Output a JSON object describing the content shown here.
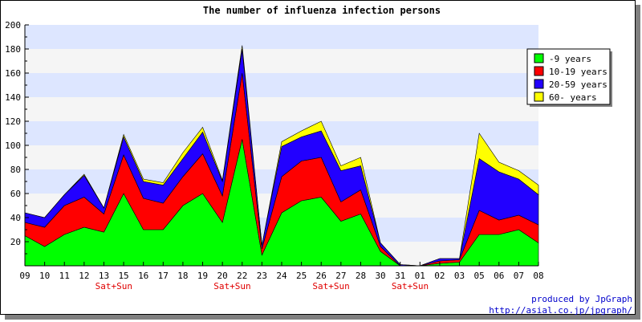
{
  "chart_data": {
    "type": "area",
    "stacked": true,
    "title": "The number of influenza infection persons",
    "categories": [
      "09",
      "10",
      "11",
      "12",
      "13",
      "15",
      "16",
      "17",
      "18",
      "19",
      "20",
      "22",
      "23",
      "24",
      "25",
      "26",
      "27",
      "28",
      "30",
      "31",
      "01",
      "02",
      "03",
      "05",
      "06",
      "07",
      "08"
    ],
    "weekend_label": "Sat+Sun",
    "weekend_after": [
      "13",
      "20",
      "26",
      "31"
    ],
    "series": [
      {
        "name": "-9 years",
        "color": "#00ff00",
        "values": [
          25,
          16,
          26,
          32,
          28,
          60,
          30,
          30,
          50,
          60,
          36,
          105,
          9,
          44,
          54,
          57,
          37,
          43,
          12,
          0,
          0,
          2,
          3,
          26,
          26,
          30,
          19
        ]
      },
      {
        "name": "10-19 years",
        "color": "#ff0000",
        "values": [
          11,
          16,
          24,
          25,
          15,
          32,
          26,
          22,
          24,
          33,
          22,
          55,
          5,
          30,
          33,
          33,
          16,
          20,
          4,
          0,
          0,
          2,
          2,
          20,
          12,
          12,
          15
        ]
      },
      {
        "name": "20-59 years",
        "color": "#2200ff",
        "values": [
          8,
          8,
          9,
          18,
          5,
          15,
          14,
          15,
          15,
          18,
          12,
          20,
          3,
          25,
          20,
          22,
          26,
          20,
          3,
          1,
          0,
          2,
          1,
          43,
          40,
          30,
          25
        ]
      },
      {
        "name": "60- years",
        "color": "#ffff00",
        "values": [
          0,
          0,
          0,
          1,
          0,
          2,
          2,
          2,
          5,
          4,
          1,
          3,
          0,
          4,
          5,
          8,
          4,
          7,
          0,
          0,
          0,
          0,
          0,
          21,
          8,
          7,
          8
        ]
      }
    ],
    "ylim": [
      0,
      200
    ],
    "yticks": [
      20,
      40,
      60,
      80,
      100,
      120,
      140,
      160,
      180,
      200
    ],
    "grid": true,
    "band_colors": [
      "#dde6ff",
      "#f5f5f5"
    ],
    "legend_position": "top-right"
  },
  "credit": {
    "line1": "produced by JpGraph",
    "line2": "http://asial.co.jp/jpgraph/"
  }
}
